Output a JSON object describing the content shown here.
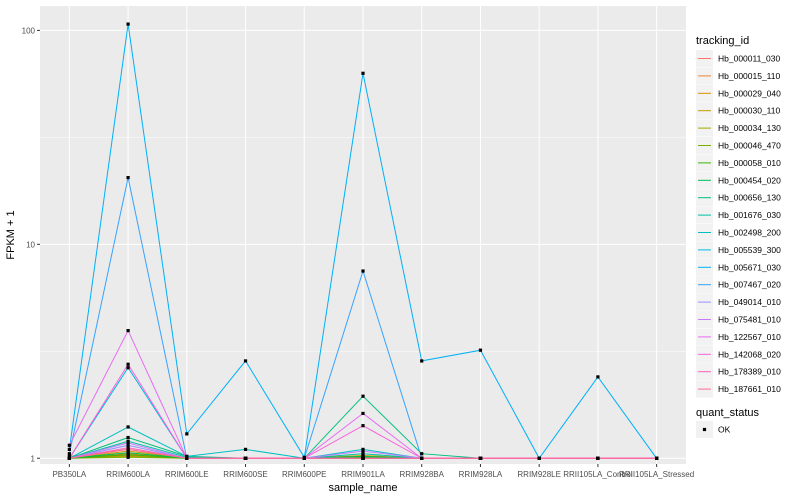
{
  "chart_data": {
    "type": "line",
    "xlabel": "sample_name",
    "ylabel": "FPKM + 1",
    "y_scale": "log10",
    "ylim": [
      0.94,
      130
    ],
    "y_ticks": [
      1,
      10,
      100
    ],
    "y_tick_labels": [
      "1",
      "10",
      "100"
    ],
    "grid": true,
    "legend_position": "right",
    "panel_background": "#ebebeb",
    "grid_major_color": "#ffffff",
    "point_color": "#000000",
    "categories": [
      "PB350LA",
      "RRIM600LA",
      "RRIM600LE",
      "RRIM600SE",
      "RRIM600PE",
      "RRIM901LA",
      "RRIM928BA",
      "RRIM928LA",
      "RRIM928LE",
      "RRII105LA_Control",
      "RRII105LA_Stressed"
    ],
    "legend_title": "tracking_id",
    "series": [
      {
        "name": "Hb_000011_030",
        "color": "#f8766d",
        "values": [
          1.02,
          1.1,
          1.0,
          1.0,
          1.0,
          1.02,
          1.0,
          1.0,
          1.0,
          1.0,
          1.0
        ]
      },
      {
        "name": "Hb_000015_110",
        "color": "#ea8331",
        "values": [
          1.0,
          1.05,
          1.0,
          1.0,
          1.0,
          1.0,
          1.0,
          1.0,
          1.0,
          1.0,
          1.0
        ]
      },
      {
        "name": "Hb_000029_040",
        "color": "#d89000",
        "values": [
          1.0,
          1.02,
          1.0,
          1.0,
          1.0,
          1.0,
          1.0,
          1.0,
          1.0,
          1.0,
          1.0
        ]
      },
      {
        "name": "Hb_000030_110",
        "color": "#c09b00",
        "values": [
          1.0,
          1.08,
          1.0,
          1.0,
          1.0,
          1.03,
          1.0,
          1.0,
          1.0,
          1.0,
          1.0
        ]
      },
      {
        "name": "Hb_000034_130",
        "color": "#a3a500",
        "values": [
          1.0,
          1.03,
          1.0,
          1.0,
          1.0,
          1.0,
          1.0,
          1.0,
          1.0,
          1.0,
          1.0
        ]
      },
      {
        "name": "Hb_000046_470",
        "color": "#7cae00",
        "values": [
          1.0,
          1.01,
          1.0,
          1.0,
          1.0,
          1.0,
          1.0,
          1.0,
          1.0,
          1.0,
          1.0
        ]
      },
      {
        "name": "Hb_000058_010",
        "color": "#39b600",
        "values": [
          1.0,
          1.04,
          1.0,
          1.0,
          1.0,
          1.01,
          1.0,
          1.0,
          1.0,
          1.0,
          1.0
        ]
      },
      {
        "name": "Hb_000454_020",
        "color": "#00bb4e",
        "values": [
          1.0,
          1.06,
          1.0,
          1.0,
          1.0,
          1.02,
          1.0,
          1.0,
          1.0,
          1.0,
          1.0
        ]
      },
      {
        "name": "Hb_000656_130",
        "color": "#00bf7d",
        "values": [
          1.0,
          1.25,
          1.02,
          1.0,
          1.0,
          1.95,
          1.05,
          1.0,
          1.0,
          1.0,
          1.0
        ]
      },
      {
        "name": "Hb_001676_030",
        "color": "#00c1a3",
        "values": [
          1.0,
          1.2,
          1.01,
          1.0,
          1.0,
          1.05,
          1.0,
          1.0,
          1.0,
          1.0,
          1.0
        ]
      },
      {
        "name": "Hb_002498_200",
        "color": "#00bfc4",
        "values": [
          1.0,
          1.4,
          1.02,
          1.1,
          1.0,
          1.1,
          1.0,
          1.0,
          1.0,
          1.0,
          1.0
        ]
      },
      {
        "name": "Hb_005539_300",
        "color": "#00bae0",
        "values": [
          1.0,
          2.65,
          1.0,
          1.0,
          1.0,
          1.0,
          1.0,
          1.0,
          1.0,
          1.0,
          1.0
        ]
      },
      {
        "name": "Hb_005671_030",
        "color": "#00b0f6",
        "values": [
          1.1,
          107,
          1.3,
          2.85,
          1.01,
          63,
          2.85,
          3.2,
          1.0,
          2.4,
          1.0
        ]
      },
      {
        "name": "Hb_007467_020",
        "color": "#35a2ff",
        "values": [
          1.05,
          20.5,
          1.0,
          1.0,
          1.0,
          7.5,
          1.0,
          1.0,
          1.0,
          1.0,
          1.0
        ]
      },
      {
        "name": "Hb_049014_010",
        "color": "#9590ff",
        "values": [
          1.0,
          1.15,
          1.0,
          1.0,
          1.0,
          1.0,
          1.0,
          1.0,
          1.0,
          1.0,
          1.0
        ]
      },
      {
        "name": "Hb_075481_010",
        "color": "#c77cff",
        "values": [
          1.0,
          1.18,
          1.0,
          1.0,
          1.0,
          1.08,
          1.0,
          1.0,
          1.0,
          1.0,
          1.0
        ]
      },
      {
        "name": "Hb_122567_010",
        "color": "#e76bf3",
        "values": [
          1.15,
          3.95,
          1.0,
          1.0,
          1.0,
          1.62,
          1.0,
          1.0,
          1.0,
          1.0,
          1.0
        ]
      },
      {
        "name": "Hb_142068_020",
        "color": "#fa62db",
        "values": [
          1.0,
          2.75,
          1.0,
          1.0,
          1.0,
          1.42,
          1.0,
          1.0,
          1.0,
          1.0,
          1.0
        ]
      },
      {
        "name": "Hb_178389_010",
        "color": "#ff62bc",
        "values": [
          1.0,
          1.12,
          1.0,
          1.0,
          1.0,
          1.0,
          1.0,
          1.0,
          1.0,
          1.0,
          1.0
        ]
      },
      {
        "name": "Hb_187661_010",
        "color": "#ff6c91",
        "values": [
          1.0,
          1.1,
          1.0,
          1.0,
          1.0,
          1.0,
          1.0,
          1.0,
          1.0,
          1.0,
          1.0
        ]
      }
    ],
    "legend2_title": "quant_status",
    "legend2_label": "OK"
  }
}
